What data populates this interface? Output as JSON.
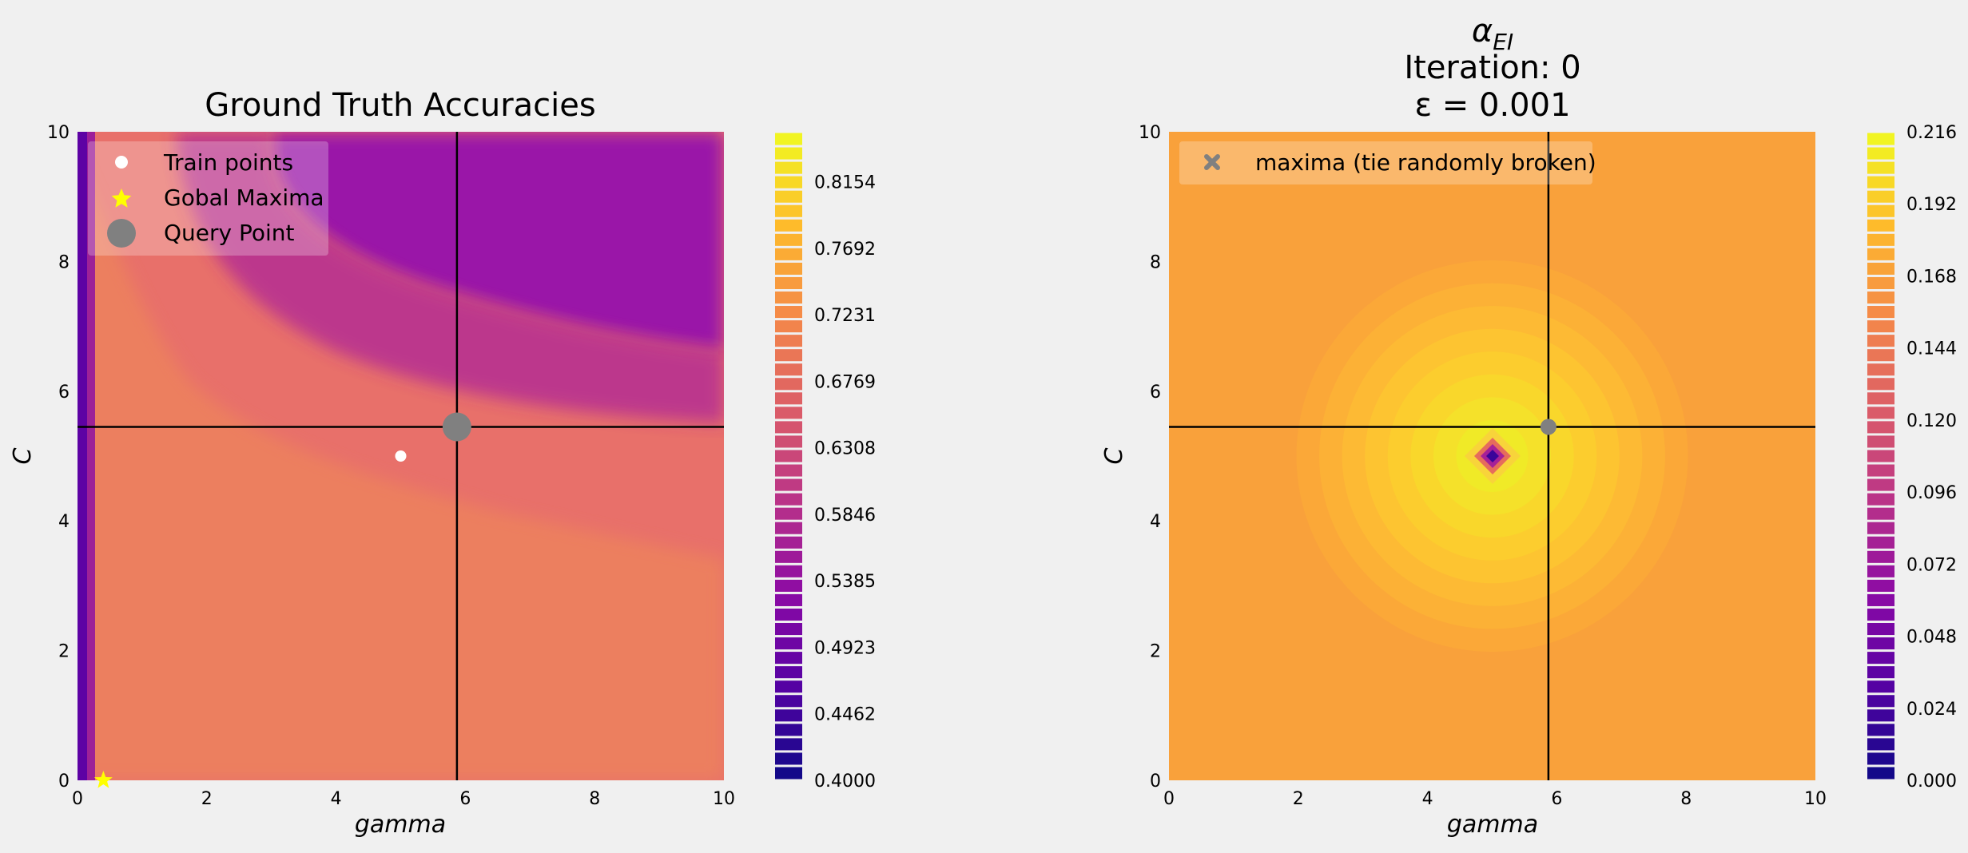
{
  "chart_data": [
    {
      "type": "heatmap",
      "title": "Ground Truth Accuracies",
      "xlabel": "gamma",
      "ylabel": "C",
      "xlim": [
        0,
        10
      ],
      "ylim": [
        0,
        10
      ],
      "xticks": [
        "0",
        "2",
        "4",
        "6",
        "8",
        "10"
      ],
      "yticks": [
        "0",
        "2",
        "4",
        "6",
        "8",
        "10"
      ],
      "colormap": "plasma",
      "grid": false,
      "colorbar": {
        "range": [
          0.4,
          0.85
        ],
        "ticks": [
          "0.4000",
          "0.4462",
          "0.4923",
          "0.5385",
          "0.5846",
          "0.6308",
          "0.6769",
          "0.7231",
          "0.7692",
          "0.8154"
        ],
        "tick_values": [
          0.4,
          0.4462,
          0.4923,
          0.5385,
          0.5846,
          0.6308,
          0.6769,
          0.7231,
          0.7692,
          0.8154
        ]
      },
      "legend": {
        "placement": "top-left",
        "entries": [
          {
            "label": "Train points",
            "marker": "circle",
            "color": "#ffffff"
          },
          {
            "label": "Gobal Maxima",
            "marker": "star",
            "color": "#ffff00"
          },
          {
            "label": "Query Point",
            "marker": "circle",
            "color": "#808080"
          }
        ]
      },
      "train_points": [
        {
          "x": 5.0,
          "y": 5.0
        }
      ],
      "global_maximum": {
        "x": 0.4,
        "y": 0.0
      },
      "query_point": {
        "x": 5.87,
        "y": 5.45
      }
    },
    {
      "type": "heatmap",
      "title_lines": [
        "αEI",
        "Iteration: 0",
        "ε = 0.001"
      ],
      "title_symbol": "α",
      "title_subscript": "EI",
      "xlabel": "gamma",
      "ylabel": "C",
      "xlim": [
        0,
        10
      ],
      "ylim": [
        0,
        10
      ],
      "xticks": [
        "0",
        "2",
        "4",
        "6",
        "8",
        "10"
      ],
      "yticks": [
        "0",
        "2",
        "4",
        "6",
        "8",
        "10"
      ],
      "colormap": "plasma",
      "grid": false,
      "colorbar": {
        "range": [
          0.0,
          0.216
        ],
        "ticks": [
          "0.000",
          "0.024",
          "0.048",
          "0.072",
          "0.096",
          "0.120",
          "0.144",
          "0.168",
          "0.192",
          "0.216"
        ],
        "tick_values": [
          0.0,
          0.024,
          0.048,
          0.072,
          0.096,
          0.12,
          0.144,
          0.168,
          0.192,
          0.216
        ]
      },
      "legend": {
        "placement": "top-left",
        "entries": [
          {
            "label": "maxima (tie randomly broken)",
            "marker": "x",
            "color": "#808080"
          }
        ]
      },
      "train_point": {
        "x": 5.0,
        "y": 5.0
      },
      "maximum_point": {
        "x": 5.87,
        "y": 5.45
      }
    }
  ]
}
